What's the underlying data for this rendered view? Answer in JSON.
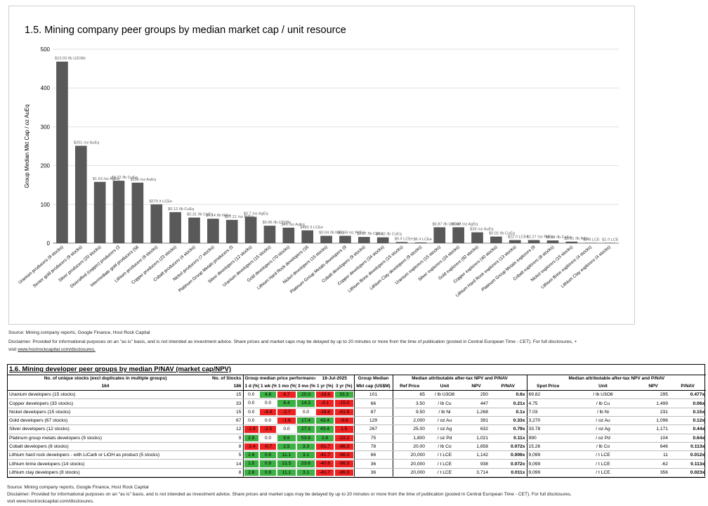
{
  "chart": {
    "title": "1.5. Mining company peer groups by median market cap / unit resource",
    "ylabel": "Group Median Mkt Cap / oz AuEq",
    "source": "Source: Mining company reports, Google Finance, Host Rock Capital",
    "disclaimer": "Disclaimer: Provided for informational purposes on an \"as is\" basis, and is not intended as investment advice. Share prices and market caps may be delayed by up to 20 minutes or more from the time of publication (posted in Central European Time - CET). For full disclosures, +",
    "visit_prefix": "visit ",
    "visit_link": "www.hostrockcapital.com/disclosures."
  },
  "chart_data": {
    "type": "bar",
    "ylim": [
      0,
      500
    ],
    "yticks": [
      "0",
      "100",
      "200",
      "300",
      "400",
      "500"
    ],
    "grid": true,
    "bar_color": "#595959",
    "categories": [
      "Uranium producers (9 stocks)",
      "Senior gold producers (9 stocks)",
      "Silver producers (20 stocks)",
      "Diversified (copper) producers (3",
      "Intermediate gold producers (56",
      "Lithium producers (9 stocks)",
      "Copper producers (23 stocks)",
      "Cobalt producers (4 stocks)",
      "Nickel producers (7 stocks)",
      "Platinum Group Metals producers (5",
      "Silver developers (12 stocks)",
      "Uranium developers (15 stocks)",
      "Gold developers (70 stocks)",
      "Lithium Hard Rock developers (16",
      "Nickel developers (15 stocks)",
      "Platinum Group Metals developers (9",
      "Cobalt developers (9 stocks)",
      "Copper developers (34 stocks)",
      "Lithium Brine developers (15 stocks)",
      "Lithium Clay developers (9 stocks)",
      "Uranium explorers (15 stocks)",
      "Silver explorers (24 stocks)",
      "Gold explorers (92 stocks)",
      "Copper explorers (40 stocks)",
      "Lithium Hard Rock explorers (13 stocks)",
      "Platinum Group Metals explorers (9",
      "Cobalt explorers (8 stocks)",
      "Nickel explorers (15 stocks)",
      "Lithium Brine explorers (4 stocks)",
      "Lithium Clay explorers (4 stocks)"
    ],
    "values": [
      468,
      251,
      158,
      161,
      156,
      100,
      80,
      66,
      63,
      60,
      68,
      45,
      40,
      33,
      19,
      19,
      16,
      15,
      3,
      2,
      41,
      41,
      28,
      17,
      8,
      8,
      7,
      4,
      1,
      1
    ],
    "labels": [
      "$10.03 /lb U3O8e",
      "$251 /oz AuEq",
      "$1.63 /oz AgEq",
      "$0.22 /lb CuEq",
      "$156 /oz AuEq",
      "$279 /t LCEe",
      "$0.12 /lb CuEq",
      "$0.31 /lb CoEq",
      "$0.14 /lb NiEq",
      "$17.21 /oz PdEq",
      "$0.7 /oz AgEq",
      "$0.96 /lb U3O8e",
      "$40 /oz AuEq",
      "$482 /t LCEe",
      "$0.04 /lb NiEq",
      "$3.59 /oz PdEq",
      "$0.07 /lb CoEq",
      "$0.02 /lb CuEq",
      "$9 /t LCEe",
      "$6 /t LCEe",
      "$0.87 /lb U3O8e",
      "$0.42 /oz AgEq",
      "$28 /oz AuEq",
      "$0.02 /lb CuEq",
      "$22 /t LCEe",
      "$2.27 /oz PdEq",
      "$0.04 /lb CoEq",
      "$0.01 /lb NiEq",
      "$3 /t LCE",
      "$1 /t LCE"
    ]
  },
  "table": {
    "title": "1.6. Mining developer peer groups by median P/NAV (market cap/NPV)",
    "h_unique": "No. of unique stocks (excl duplicates in multiple groups)",
    "h_nstocks": "No. of Stocks",
    "h_perf": "Group median price performance",
    "h_date": "18-Jul-2025",
    "h_groupmedian": "Group Median",
    "h_npv1": "Median attributable after-tax NPV and P/NAV",
    "h_npv2": "Median attributable after-tax NPV and P/NAV",
    "unique_count": "164",
    "total_count": "186",
    "col_1d": "1 d (%)",
    "col_1wk": "1 wk (%)",
    "col_1mo": "1 mo (%)",
    "col_3mo": "3 mo (%)",
    "col_1yr": "1 yr (%)",
    "col_3yr": "3 yr (%)",
    "col_mktcap": "Mkt cap (US$M)",
    "col_refprice": "Ref Price",
    "col_unit": "Unit",
    "col_npv": "NPV",
    "col_pnav": "P/NAV",
    "col_spot": "Spot Price",
    "col_unit2": "Unit",
    "col_npv2": "NPV",
    "col_pnav2": "P/NAV",
    "rows": [
      {
        "name": "Uranium developers (15 stocks)",
        "n": "15",
        "d1": "0.0",
        "wk": "4.8",
        "mo1": "6.7",
        "mo3": "20.0",
        "yr1": "-18.6",
        "yr3": "33.3",
        "mcap": "101",
        "ref": "65",
        "unit": "/ lb U3O8",
        "npv": "250",
        "pnav": "0.6x",
        "spot": "69.82",
        "unit2": "/ lb U3O8",
        "npv2": "295",
        "pnav2": "0.477x",
        "colors": [
          "w",
          "g",
          "rd",
          "g",
          "rd",
          "g"
        ]
      },
      {
        "name": "Copper developers (33 stocks)",
        "n": "33",
        "d1": "0.0",
        "wk": "0.0",
        "mo1": "8.4",
        "mo3": "14.3",
        "yr1": "-9.1",
        "yr3": "-15.0",
        "mcap": "66",
        "ref": "3.50",
        "unit": "/ lb Cu",
        "npv": "447",
        "pnav": "0.21x",
        "spot": "4.75",
        "unit2": "/ lb Cu",
        "npv2": "1,499",
        "pnav2": "0.06x",
        "colors": [
          "w",
          "w",
          "g",
          "g",
          "rd",
          "rd"
        ]
      },
      {
        "name": "Nickel developers (15 stocks)",
        "n": "15",
        "d1": "0.0",
        "wk": "-4.4",
        "mo1": "-2.7",
        "mo3": "0.0",
        "yr1": "-18.6",
        "yr3": "-61.9",
        "mcap": "87",
        "ref": "9.50",
        "unit": "/ lb Ni",
        "npv": "1,268",
        "pnav": "0.1x",
        "spot": "7.03",
        "unit2": "/ lb Ni",
        "npv2": "231",
        "pnav2": "0.15x",
        "colors": [
          "w",
          "rd",
          "rd",
          "w",
          "rd",
          "rd"
        ]
      },
      {
        "name": "Gold developers (67 stocks)",
        "n": "67",
        "d1": "0.0",
        "wk": "0.0",
        "mo1": "-1.6",
        "mo3": "17.4",
        "yr1": "43.4",
        "yr3": "-9.8",
        "mcap": "129",
        "ref": "2,000",
        "unit": "/ oz Au",
        "npv": "391",
        "pnav": "0.33x",
        "spot": "3,270",
        "unit2": "/ oz Au",
        "npv2": "1,096",
        "pnav2": "0.12x",
        "colors": [
          "w",
          "w",
          "rd",
          "g",
          "g",
          "rd"
        ]
      },
      {
        "name": "Silver developers (12 stocks)",
        "n": "12",
        "d1": "-1.9",
        "wk": "-2.5",
        "mo1": "0.0",
        "mo3": "27.3",
        "yr1": "43.4",
        "yr3": "1.5",
        "mcap": "267",
        "ref": "25.00",
        "unit": "/ oz Ag",
        "npv": "632",
        "pnav": "0.79x",
        "spot": "33.78",
        "unit2": "/ oz Ag",
        "npv2": "1,171",
        "pnav2": "0.44x",
        "colors": [
          "rd",
          "rd",
          "w",
          "g",
          "g",
          "rd"
        ]
      },
      {
        "name": "Platinum group metals developers (9 stocks)",
        "n": "9",
        "d1": "2.8",
        "wk": "0.0",
        "mo1": "8.6",
        "mo3": "53.8",
        "yr1": "2.8",
        "yr3": "-22.2",
        "mcap": "75",
        "ref": "1,800",
        "unit": "/ oz Pd",
        "npv": "1,021",
        "pnav": "0.11x",
        "spot": "990",
        "unit2": "/ oz Pd",
        "npv2": "104",
        "pnav2": "0.64x",
        "colors": [
          "g",
          "w",
          "g",
          "g",
          "g",
          "rd"
        ]
      },
      {
        "name": "Cobalt developers (8 stocks)",
        "n": "8",
        "d1": "-1.4",
        "wk": "-0.7",
        "mo1": "2.5",
        "mo3": "3.3",
        "yr1": "-51.7",
        "yr3": "-86.3",
        "mcap": "78",
        "ref": "20.00",
        "unit": "/ lb Co",
        "npv": "1,658",
        "pnav": "0.072x",
        "spot": "15.26",
        "unit2": "/ lb Co",
        "npv2": "646",
        "pnav2": "0.113x",
        "colors": [
          "rd",
          "rd",
          "g",
          "g",
          "rd",
          "rd"
        ]
      },
      {
        "name": "Lithium hard rock developers - with LiCarb or LiOH as product (5 stocks)",
        "n": "5",
        "d1": "2.6",
        "wk": "0.9",
        "mo1": "11.1",
        "mo3": "3.1",
        "yr1": "-41.7",
        "yr3": "-86.3",
        "mcap": "66",
        "ref": "20,000",
        "unit": "/ t LCE",
        "npv": "1,142",
        "pnav": "0.006x",
        "spot": "9,099",
        "unit2": "/ t LCE",
        "npv2": "11",
        "pnav2": "0.012x",
        "colors": [
          "g",
          "g",
          "g",
          "g",
          "rd",
          "rd"
        ]
      },
      {
        "name": "Lithium brine developers (14 stocks)",
        "n": "14",
        "d1": "1.5",
        "wk": "0.9",
        "mo1": "21.5",
        "mo3": "23.6",
        "yr1": "-40.6",
        "yr3": "-86.3",
        "mcap": "36",
        "ref": "20,000",
        "unit": "/ t LCE",
        "npv": "938",
        "pnav": "0.072x",
        "spot": "9,099",
        "unit2": "/ t LCE",
        "npv2": "-62",
        "pnav2": "0.113x",
        "colors": [
          "g",
          "g",
          "g",
          "g",
          "rd",
          "rd"
        ]
      },
      {
        "name": "Lithium clay developers (8 stocks)",
        "n": "8",
        "d1": "2.6",
        "wk": "0.9",
        "mo1": "11.1",
        "mo3": "3.1",
        "yr1": "-41.7",
        "yr3": "-86.3",
        "mcap": "36",
        "ref": "20,000",
        "unit": "/ t LCE",
        "npv": "3,714",
        "pnav": "0.011x",
        "spot": "9,099",
        "unit2": "/ t LCE",
        "npv2": "356",
        "pnav2": "0.023x",
        "colors": [
          "g",
          "g",
          "g",
          "g",
          "rd",
          "rd"
        ]
      }
    ],
    "source": "Source: Mining company reports, Google Finance, Host Rock Capital",
    "disclaimer": "Disclaimer: Provided for informational purposes on an \"as is\" basis, and is not intended as investment advice. Share prices and market caps may be delayed by up to 20 minutes or more from the time of publication (posted in Central European Time - CET). For full disclosures,",
    "visit": "visit www.hostrockcapital.com/disclosures."
  }
}
